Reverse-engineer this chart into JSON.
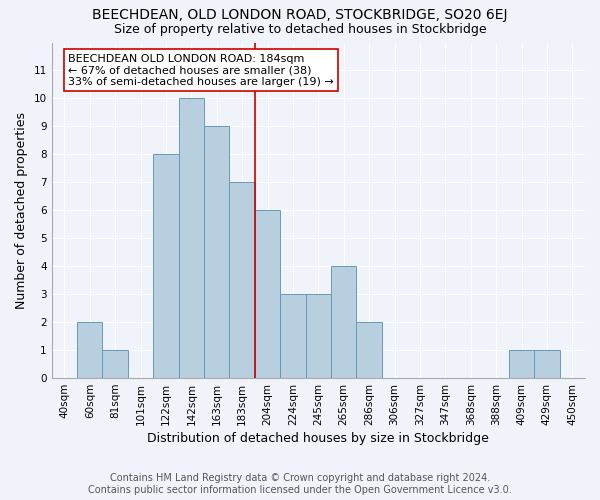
{
  "title": "BEECHDEAN, OLD LONDON ROAD, STOCKBRIDGE, SO20 6EJ",
  "subtitle": "Size of property relative to detached houses in Stockbridge",
  "xlabel": "Distribution of detached houses by size in Stockbridge",
  "ylabel": "Number of detached properties",
  "categories": [
    "40sqm",
    "60sqm",
    "81sqm",
    "101sqm",
    "122sqm",
    "142sqm",
    "163sqm",
    "183sqm",
    "204sqm",
    "224sqm",
    "245sqm",
    "265sqm",
    "286sqm",
    "306sqm",
    "327sqm",
    "347sqm",
    "368sqm",
    "388sqm",
    "409sqm",
    "429sqm",
    "450sqm"
  ],
  "values": [
    0,
    2,
    1,
    0,
    8,
    10,
    9,
    7,
    6,
    3,
    3,
    4,
    2,
    0,
    0,
    0,
    0,
    0,
    1,
    1,
    0
  ],
  "bar_color": "#b8cfe0",
  "bar_edge_color": "#6699bb",
  "vline_color": "#cc0000",
  "annotation_line1": "BEECHDEAN OLD LONDON ROAD: 184sqm",
  "annotation_line2": "← 67% of detached houses are smaller (38)",
  "annotation_line3": "33% of semi-detached houses are larger (19) →",
  "annotation_box_color": "#cc0000",
  "ylim": [
    0,
    12
  ],
  "yticks": [
    0,
    1,
    2,
    3,
    4,
    5,
    6,
    7,
    8,
    9,
    10,
    11
  ],
  "bg_color": "#f0f4fa",
  "plot_bg_color": "#f0f4fa",
  "footer1": "Contains HM Land Registry data © Crown copyright and database right 2024.",
  "footer2": "Contains public sector information licensed under the Open Government Licence v3.0.",
  "title_fontsize": 10,
  "subtitle_fontsize": 9,
  "annotation_fontsize": 8,
  "footer_fontsize": 7,
  "ylabel_fontsize": 9,
  "xlabel_fontsize": 9,
  "tick_fontsize": 7.5
}
